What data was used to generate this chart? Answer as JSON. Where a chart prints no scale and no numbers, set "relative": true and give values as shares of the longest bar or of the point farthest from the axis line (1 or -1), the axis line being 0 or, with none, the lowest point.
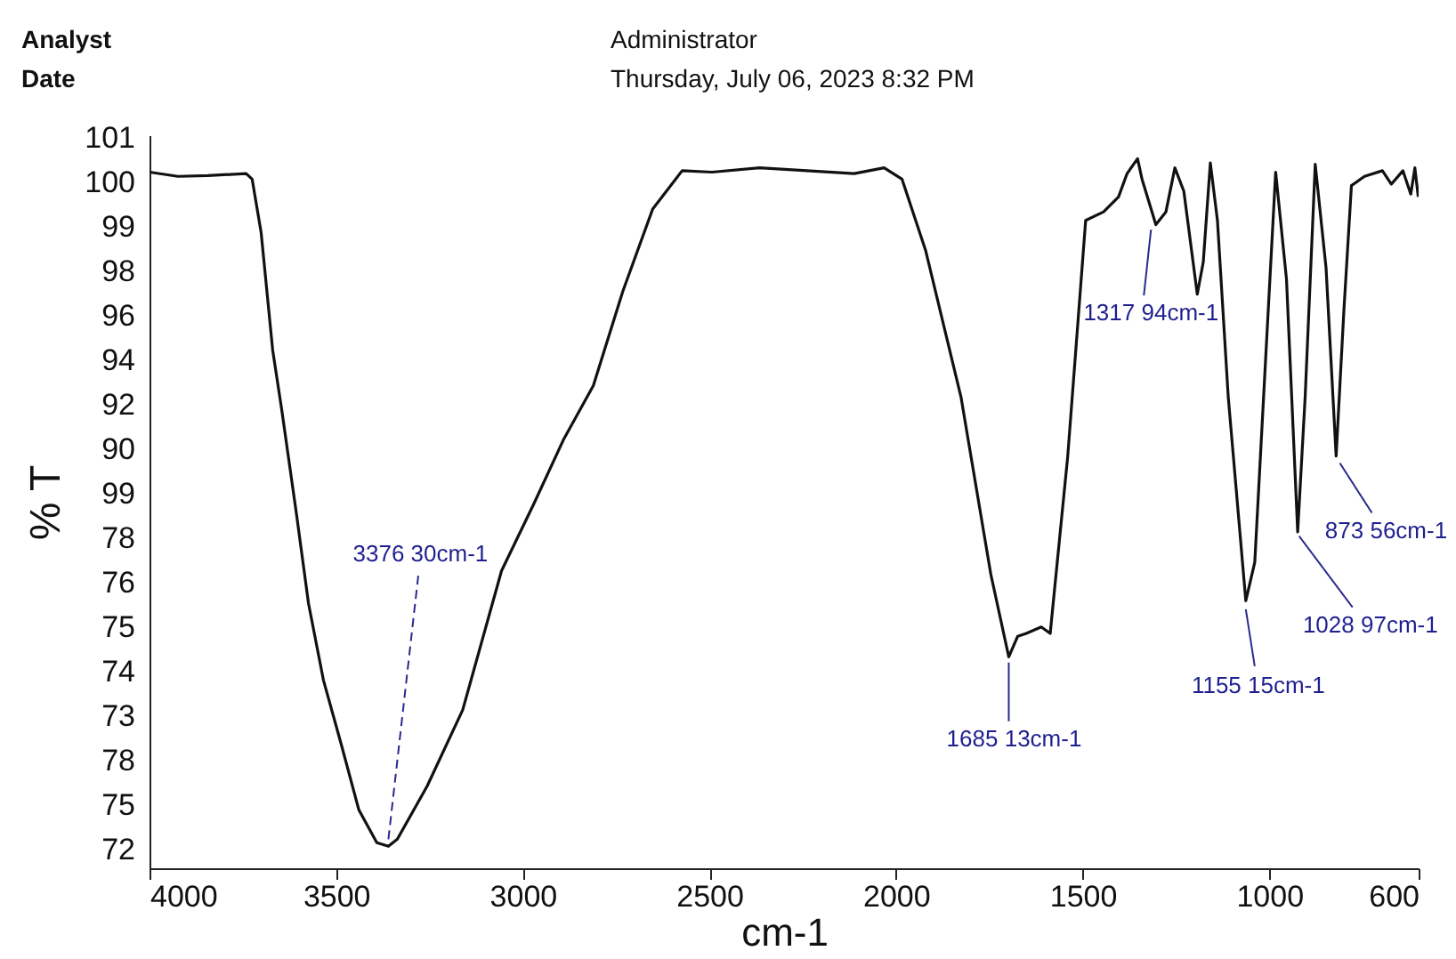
{
  "chart_data": {
    "type": "line",
    "xlabel": "cm-1",
    "ylabel": "% T",
    "relative": true,
    "xlim": [
      4000,
      600
    ],
    "xticks": [
      4000,
      3500,
      3000,
      2500,
      2000,
      1500,
      1000,
      600
    ],
    "grid": false,
    "marker": "none",
    "line_style": "solid",
    "series": [
      {
        "color": "#111111",
        "x": [
          4000,
          3924,
          3844,
          3741,
          3725,
          3701,
          3670,
          3646,
          3606,
          3574,
          3534,
          3486,
          3439,
          3391,
          3360,
          3336,
          3256,
          3161,
          3057,
          2970,
          2890,
          2811,
          2732,
          2652,
          2573,
          2493,
          2366,
          2112,
          2032,
          1984,
          1921,
          1826,
          1746,
          1698,
          1674,
          1651,
          1611,
          1587,
          1540,
          1492,
          1444,
          1404,
          1381,
          1353,
          1341,
          1304,
          1277,
          1253,
          1229,
          1193,
          1177,
          1158,
          1139,
          1110,
          1063,
          1039,
          1007,
          983,
          954,
          924,
          904,
          877,
          848,
          821,
          800,
          780,
          745,
          697,
          673,
          642,
          621,
          610,
          601
        ],
        "values": [
          0.981,
          0.975,
          0.976,
          0.979,
          0.971,
          0.896,
          0.73,
          0.647,
          0.498,
          0.373,
          0.265,
          0.174,
          0.082,
          0.036,
          0.031,
          0.041,
          0.116,
          0.223,
          0.419,
          0.514,
          0.605,
          0.68,
          0.813,
          0.929,
          0.983,
          0.981,
          0.987,
          0.979,
          0.987,
          0.971,
          0.871,
          0.664,
          0.414,
          0.298,
          0.327,
          0.331,
          0.34,
          0.331,
          0.581,
          0.913,
          0.925,
          0.946,
          0.979,
          1,
          0.971,
          0.907,
          0.925,
          0.987,
          0.954,
          0.809,
          0.854,
          0.994,
          0.913,
          0.664,
          0.377,
          0.431,
          0.746,
          0.981,
          0.83,
          0.474,
          0.664,
          0.992,
          0.846,
          0.581,
          0.788,
          0.962,
          0.975,
          0.983,
          0.964,
          0.983,
          0.95,
          0.987,
          0.946
        ]
      }
    ],
    "annotations": [
      "Analyst",
      "Administrator",
      "Date",
      "Thursday, July 06, 2023 8:32 PM",
      "101",
      "100",
      "99",
      "98",
      "96",
      "94",
      "92",
      "90",
      "99",
      "78",
      "76",
      "75",
      "74",
      "73",
      "78",
      "75",
      "72",
      {
        "text": "3376 30cm-1",
        "x": 3360,
        "y": 0.041
      },
      {
        "text": "1685 13cm-1",
        "x": 1698,
        "y": 0.29
      },
      {
        "text": "1317 94cm-1",
        "x": 1317,
        "y": 0.9
      },
      {
        "text": "1155 15cm-1",
        "x": 1063,
        "y": 0.365
      },
      {
        "text": "1028 97cm-1",
        "x": 920,
        "y": 0.468
      },
      {
        "text": "873 56cm-1",
        "x": 811,
        "y": 0.571
      }
    ]
  }
}
